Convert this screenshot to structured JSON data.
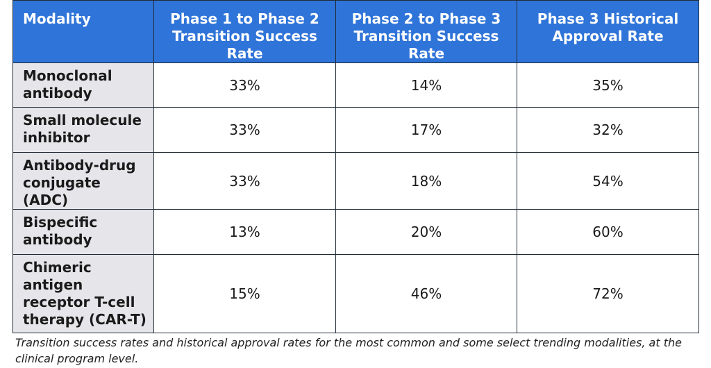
{
  "table": {
    "headers": [
      "Modality",
      "Phase 1 to Phase 2 Transition Success Rate",
      "Phase 2 to Phase 3 Transition Success Rate",
      "Phase 3 Historical Approval Rate"
    ],
    "rows": [
      {
        "modality": "Monoclonal antibody",
        "p1_p2": "33%",
        "p2_p3": "14%",
        "p3_approval": "35%"
      },
      {
        "modality": "Small molecule inhibitor",
        "p1_p2": "33%",
        "p2_p3": "17%",
        "p3_approval": "32%"
      },
      {
        "modality": "Antibody-drug conjugate (ADC)",
        "p1_p2": "33%",
        "p2_p3": "18%",
        "p3_approval": "54%"
      },
      {
        "modality": "Bispecific antibody",
        "p1_p2": "13%",
        "p2_p3": "20%",
        "p3_approval": "60%"
      },
      {
        "modality": "Chimeric antigen receptor T-cell therapy (CAR-T)",
        "p1_p2": "15%",
        "p2_p3": "46%",
        "p3_approval": "72%"
      }
    ]
  },
  "caption": "Transition success rates and historical approval rates for the most common and some select trending modalities, at the clinical program level.",
  "colors": {
    "header_bg": "#2f74d8",
    "header_text": "#ffffff",
    "first_column_bg": "#e6e6ea",
    "border": "#1f2a36"
  }
}
